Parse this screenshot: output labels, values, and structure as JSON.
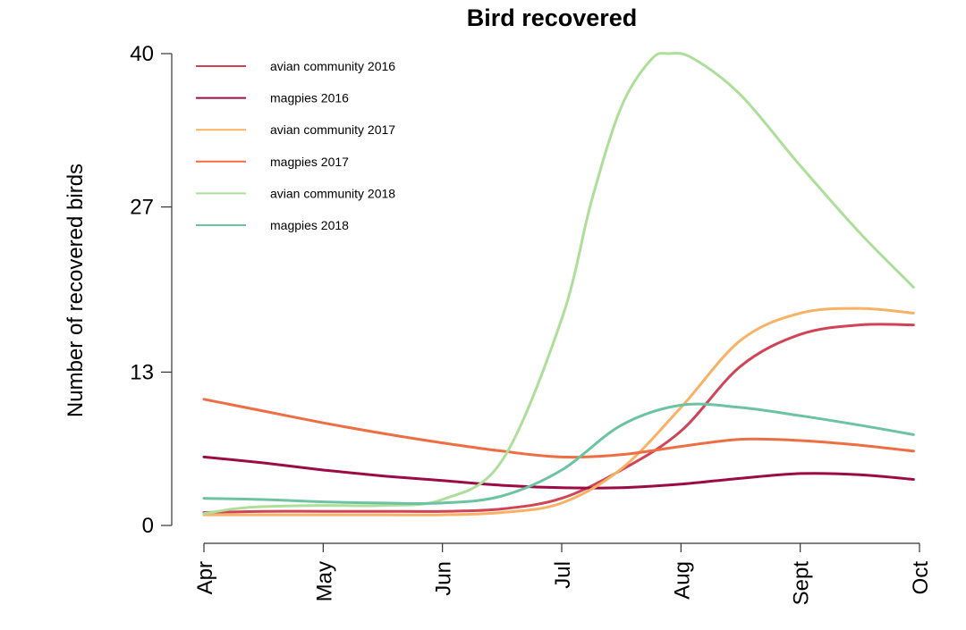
{
  "chart_data": {
    "type": "line",
    "title": "Bird recovered",
    "xlabel": "",
    "ylabel": "Number of recovered birds",
    "x_ticks": [
      "Apr",
      "May",
      "Jun",
      "Jul",
      "Aug",
      "Sept",
      "Oct"
    ],
    "y_ticks": [
      0,
      13,
      27,
      40
    ],
    "ylim": [
      0,
      40
    ],
    "xlim": [
      0,
      6
    ],
    "grid": false,
    "legend_position": "top-left",
    "series": [
      {
        "name": "avian community 2016",
        "color": "#d04456",
        "points": [
          [
            0,
            1.1
          ],
          [
            0.5,
            1.2
          ],
          [
            1,
            1.2
          ],
          [
            1.5,
            1.2
          ],
          [
            2,
            1.2
          ],
          [
            2.5,
            1.4
          ],
          [
            3,
            2.3
          ],
          [
            3.5,
            4.7
          ],
          [
            4,
            8.0
          ],
          [
            4.5,
            13.5
          ],
          [
            5,
            16.2
          ],
          [
            5.5,
            17.0
          ],
          [
            5.95,
            17.0
          ]
        ]
      },
      {
        "name": "magpies 2016",
        "color": "#9b0b45",
        "points": [
          [
            0,
            5.8
          ],
          [
            0.5,
            5.3
          ],
          [
            1,
            4.7
          ],
          [
            1.5,
            4.2
          ],
          [
            2,
            3.8
          ],
          [
            2.5,
            3.4
          ],
          [
            3,
            3.2
          ],
          [
            3.5,
            3.2
          ],
          [
            4,
            3.5
          ],
          [
            4.5,
            4.0
          ],
          [
            5,
            4.4
          ],
          [
            5.5,
            4.3
          ],
          [
            5.95,
            3.9
          ]
        ]
      },
      {
        "name": "avian community 2017",
        "color": "#f9b165",
        "points": [
          [
            0,
            0.9
          ],
          [
            0.5,
            0.9
          ],
          [
            1,
            0.9
          ],
          [
            1.5,
            0.9
          ],
          [
            2,
            0.9
          ],
          [
            2.5,
            1.1
          ],
          [
            3,
            1.9
          ],
          [
            3.5,
            4.8
          ],
          [
            4,
            10.0
          ],
          [
            4.5,
            15.7
          ],
          [
            5,
            18.0
          ],
          [
            5.5,
            18.4
          ],
          [
            5.95,
            18.0
          ]
        ]
      },
      {
        "name": "magpies 2017",
        "color": "#ee6e43",
        "points": [
          [
            0,
            10.7
          ],
          [
            0.5,
            9.7
          ],
          [
            1,
            8.7
          ],
          [
            1.5,
            7.8
          ],
          [
            2,
            7.0
          ],
          [
            2.5,
            6.3
          ],
          [
            3,
            5.8
          ],
          [
            3.5,
            6.0
          ],
          [
            4,
            6.7
          ],
          [
            4.5,
            7.3
          ],
          [
            5,
            7.2
          ],
          [
            5.5,
            6.8
          ],
          [
            5.95,
            6.3
          ]
        ]
      },
      {
        "name": "avian community 2018",
        "color": "#addf9a",
        "points": [
          [
            0,
            1.0
          ],
          [
            0.25,
            1.4
          ],
          [
            0.5,
            1.6
          ],
          [
            1,
            1.7
          ],
          [
            1.5,
            1.7
          ],
          [
            2,
            2.2
          ],
          [
            2.5,
            5.5
          ],
          [
            3,
            17.5
          ],
          [
            3.25,
            27.5
          ],
          [
            3.5,
            35.5
          ],
          [
            3.75,
            39.5
          ],
          [
            3.9,
            40.0
          ],
          [
            4.1,
            39.6
          ],
          [
            4.5,
            36.5
          ],
          [
            5,
            30.5
          ],
          [
            5.5,
            24.8
          ],
          [
            5.95,
            20.2
          ]
        ]
      },
      {
        "name": "magpies 2018",
        "color": "#6cc3a2",
        "points": [
          [
            0,
            2.3
          ],
          [
            0.5,
            2.2
          ],
          [
            1,
            2.0
          ],
          [
            1.5,
            1.9
          ],
          [
            2,
            1.9
          ],
          [
            2.5,
            2.5
          ],
          [
            3,
            4.7
          ],
          [
            3.5,
            8.5
          ],
          [
            4,
            10.2
          ],
          [
            4.5,
            10.0
          ],
          [
            5,
            9.3
          ],
          [
            5.5,
            8.5
          ],
          [
            5.95,
            7.7
          ]
        ]
      }
    ]
  }
}
